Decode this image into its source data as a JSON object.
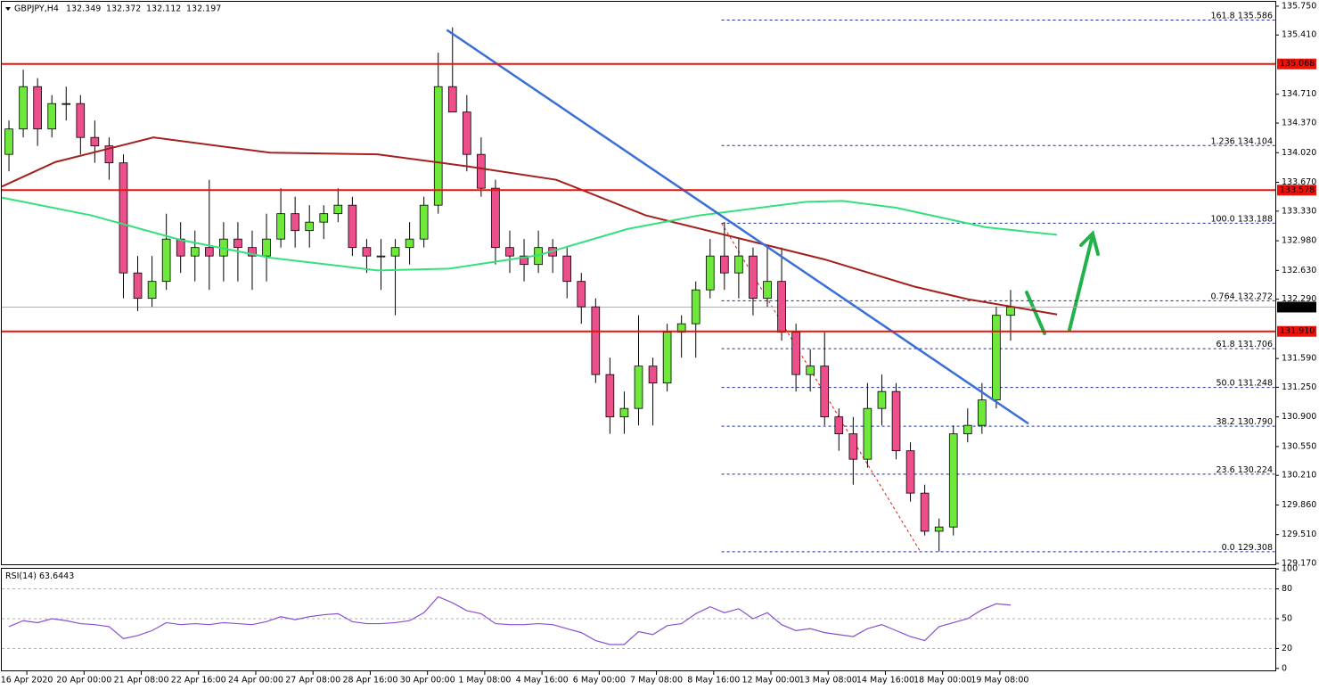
{
  "chart_data": [
    {
      "type": "candlestick",
      "symbol": "GBPJPY,H4",
      "header_ohlc": [
        132.349,
        132.372,
        132.112,
        132.197
      ],
      "xlim": [
        0,
        89
      ],
      "xticks": [
        {
          "value": 1.75,
          "label": "16 Apr 2020"
        },
        {
          "value": 5.75,
          "label": "20 Apr 00:00"
        },
        {
          "value": 9.75,
          "label": "21 Apr 08:00"
        },
        {
          "value": 13.75,
          "label": "22 Apr 16:00"
        },
        {
          "value": 17.75,
          "label": "24 Apr 00:00"
        },
        {
          "value": 21.75,
          "label": "27 Apr 08:00"
        },
        {
          "value": 25.75,
          "label": "28 Apr 16:00"
        },
        {
          "value": 29.75,
          "label": "30 Apr 00:00"
        },
        {
          "value": 33.75,
          "label": "1 May 08:00"
        },
        {
          "value": 37.75,
          "label": "4 May 16:00"
        },
        {
          "value": 41.75,
          "label": "6 May 00:00"
        },
        {
          "value": 45.75,
          "label": "7 May 08:00"
        },
        {
          "value": 49.75,
          "label": "8 May 16:00"
        },
        {
          "value": 53.75,
          "label": "12 May 00:00"
        },
        {
          "value": 57.75,
          "label": "13 May 08:00"
        },
        {
          "value": 61.75,
          "label": "14 May 16:00"
        },
        {
          "value": 65.75,
          "label": "18 May 00:00"
        },
        {
          "value": 69.75,
          "label": "19 May 08:00"
        }
      ],
      "ylim": [
        129.149,
        135.802
      ],
      "yticks": [
        {
          "value": 135.75,
          "label": "135.750"
        },
        {
          "value": 135.41,
          "label": "135.410"
        },
        {
          "value": 134.71,
          "label": "134.710"
        },
        {
          "value": 134.37,
          "label": "134.370"
        },
        {
          "value": 134.02,
          "label": "134.020"
        },
        {
          "value": 133.67,
          "label": "133.670"
        },
        {
          "value": 133.33,
          "label": "133.330"
        },
        {
          "value": 132.98,
          "label": "132.980"
        },
        {
          "value": 132.63,
          "label": "132.630"
        },
        {
          "value": 132.29,
          "label": "132.290"
        },
        {
          "value": 131.59,
          "label": "131.590"
        },
        {
          "value": 131.25,
          "label": "131.250"
        },
        {
          "value": 130.9,
          "label": "130.900"
        },
        {
          "value": 130.55,
          "label": "130.550"
        },
        {
          "value": 130.21,
          "label": "130.210"
        },
        {
          "value": 129.86,
          "label": "129.860"
        },
        {
          "value": 129.51,
          "label": "129.510"
        },
        {
          "value": 129.17,
          "label": "129.170"
        }
      ],
      "up_color": "#6ee83a",
      "down_color": "#ec4f8c",
      "candles": [
        [
          134.0,
          134.4,
          133.8,
          134.3
        ],
        [
          134.3,
          135.0,
          134.2,
          134.8
        ],
        [
          134.8,
          134.9,
          134.1,
          134.3
        ],
        [
          134.3,
          134.7,
          134.2,
          134.6
        ],
        [
          134.6,
          134.8,
          134.4,
          134.6
        ],
        [
          134.6,
          134.7,
          134.0,
          134.2
        ],
        [
          134.2,
          134.4,
          133.9,
          134.1
        ],
        [
          134.1,
          134.2,
          133.7,
          133.9
        ],
        [
          133.9,
          134.0,
          132.3,
          132.6
        ],
        [
          132.6,
          132.8,
          132.15,
          132.3
        ],
        [
          132.3,
          132.8,
          132.2,
          132.5
        ],
        [
          132.5,
          133.3,
          132.4,
          133.0
        ],
        [
          133.0,
          133.2,
          132.6,
          132.8
        ],
        [
          132.8,
          133.1,
          132.5,
          132.9
        ],
        [
          132.9,
          133.7,
          132.4,
          132.8
        ],
        [
          132.8,
          133.2,
          132.5,
          133.0
        ],
        [
          133.0,
          133.2,
          132.5,
          132.9
        ],
        [
          132.9,
          133.1,
          132.4,
          132.8
        ],
        [
          132.8,
          133.3,
          132.5,
          133.0
        ],
        [
          133.0,
          133.6,
          132.9,
          133.3
        ],
        [
          133.3,
          133.5,
          132.9,
          133.1
        ],
        [
          133.1,
          133.4,
          132.9,
          133.2
        ],
        [
          133.2,
          133.4,
          133.0,
          133.3
        ],
        [
          133.3,
          133.6,
          133.2,
          133.4
        ],
        [
          133.4,
          133.5,
          132.8,
          132.9
        ],
        [
          132.9,
          133.0,
          132.6,
          132.8
        ],
        [
          132.8,
          133.0,
          132.4,
          132.8
        ],
        [
          132.8,
          133.0,
          132.1,
          132.9
        ],
        [
          132.9,
          133.2,
          132.7,
          133.0
        ],
        [
          133.0,
          133.5,
          132.9,
          133.4
        ],
        [
          133.4,
          135.2,
          133.3,
          134.8
        ],
        [
          134.8,
          135.5,
          134.5,
          134.5
        ],
        [
          134.5,
          134.7,
          133.8,
          134.0
        ],
        [
          134.0,
          134.2,
          133.5,
          133.6
        ],
        [
          133.6,
          133.7,
          132.7,
          132.9
        ],
        [
          132.9,
          133.1,
          132.6,
          132.8
        ],
        [
          132.8,
          133.0,
          132.5,
          132.7
        ],
        [
          132.7,
          133.1,
          132.6,
          132.9
        ],
        [
          132.9,
          133.0,
          132.6,
          132.8
        ],
        [
          132.8,
          132.9,
          132.3,
          132.5
        ],
        [
          132.5,
          132.6,
          132.0,
          132.2
        ],
        [
          132.2,
          132.3,
          131.3,
          131.4
        ],
        [
          131.4,
          131.6,
          130.7,
          130.9
        ],
        [
          130.9,
          131.2,
          130.7,
          131.0
        ],
        [
          131.0,
          132.1,
          130.8,
          131.5
        ],
        [
          131.5,
          131.6,
          130.8,
          131.3
        ],
        [
          131.3,
          132.0,
          131.2,
          131.9
        ],
        [
          131.9,
          132.1,
          131.6,
          132.0
        ],
        [
          132.0,
          132.5,
          131.6,
          132.4
        ],
        [
          132.4,
          133.0,
          132.3,
          132.8
        ],
        [
          132.8,
          133.2,
          132.4,
          132.6
        ],
        [
          132.6,
          133.0,
          132.3,
          132.8
        ],
        [
          132.8,
          132.9,
          132.1,
          132.3
        ],
        [
          132.3,
          132.9,
          132.2,
          132.5
        ],
        [
          132.5,
          132.9,
          131.8,
          131.9
        ],
        [
          131.9,
          132.0,
          131.2,
          131.4
        ],
        [
          131.4,
          131.7,
          131.2,
          131.5
        ],
        [
          131.5,
          131.9,
          130.8,
          130.9
        ],
        [
          130.9,
          131.0,
          130.5,
          130.7
        ],
        [
          130.7,
          130.9,
          130.1,
          130.4
        ],
        [
          130.4,
          131.3,
          130.3,
          131.0
        ],
        [
          131.0,
          131.4,
          130.8,
          131.2
        ],
        [
          131.2,
          131.3,
          130.4,
          130.5
        ],
        [
          130.5,
          130.6,
          129.9,
          130.0
        ],
        [
          130.0,
          130.1,
          129.5,
          129.55
        ],
        [
          129.55,
          129.7,
          129.31,
          129.6
        ],
        [
          129.6,
          130.8,
          129.5,
          130.7
        ],
        [
          130.7,
          131.0,
          130.6,
          130.8
        ],
        [
          130.8,
          131.3,
          130.7,
          131.1
        ],
        [
          131.1,
          132.2,
          131.0,
          132.1
        ],
        [
          132.1,
          132.4,
          131.8,
          132.197
        ]
      ],
      "moving_averages": [
        {
          "color": "#a3201c",
          "x": [
            0,
            3.75,
            10.6,
            18.75,
            26.25,
            32.5,
            38.75,
            45,
            51.25,
            57.5,
            63.75,
            67.5,
            73.75
          ],
          "values": [
            133.62,
            133.91,
            134.2,
            134.02,
            134.0,
            133.86,
            133.7,
            133.28,
            133.02,
            132.76,
            132.44,
            132.29,
            132.11
          ]
        },
        {
          "color": "#33e07c",
          "x": [
            0,
            6.25,
            12.5,
            18.75,
            26.25,
            31.25,
            37.5,
            43.75,
            48.75,
            56.25,
            58.75,
            62.5,
            68.75,
            73.75
          ],
          "values": [
            133.49,
            133.28,
            132.99,
            132.78,
            132.63,
            132.65,
            132.81,
            133.12,
            133.28,
            133.44,
            133.45,
            133.37,
            133.14,
            133.05
          ]
        }
      ],
      "levels": [
        {
          "price": 135.068,
          "color": "#e8140c"
        },
        {
          "price": 133.578,
          "color": "#e8140c"
        },
        {
          "price": {
            "value": 131.91,
            "label": "131.910"
          },
          "color": "#e8140c"
        }
      ],
      "current_price": 132.197,
      "fibonacci": {
        "color": "#1a2a9a",
        "x_start": 50.3,
        "levels": [
          {
            "level": 161.8,
            "price": 135.586
          },
          {
            "level": 1.236,
            "price": 134.104
          },
          {
            "level": {
              "value": 100,
              "label": "100.0"
            },
            "price": 133.188
          },
          {
            "level": 0.764,
            "price": 132.272
          },
          {
            "level": 61.8,
            "price": 131.706
          },
          {
            "level": {
              "value": 50,
              "label": "50.0"
            },
            "price": 131.248
          },
          {
            "level": 38.2,
            "price": {
              "value": 130.79,
              "label": "130.790"
            }
          },
          {
            "level": 23.6,
            "price": 130.224
          },
          {
            "level": {
              "value": 0,
              "label": "0.0"
            },
            "price": 129.308
          }
        ]
      },
      "trendline": {
        "color": "#3a6fd8",
        "x": [
          31.1,
          71.75
        ],
        "values": [
          135.47,
          130.82
        ]
      },
      "fib_line": {
        "color": "#e8140c",
        "x": [
          50.3,
          64.2
        ],
        "values": [
          133.188,
          129.308
        ]
      }
    },
    {
      "type": "line",
      "label": "RSI(14)",
      "last": 63.6443,
      "xlim": [
        0,
        89
      ],
      "ylim": [
        -2,
        101.1
      ],
      "yticks": [
        0,
        20,
        50,
        80,
        100
      ],
      "levels": [
        20,
        50,
        80
      ],
      "color": "#8a4fd0",
      "values": [
        42,
        48,
        46,
        50,
        48,
        45,
        44,
        42,
        30,
        33,
        38,
        46,
        44,
        45,
        44,
        46,
        45,
        44,
        47,
        52,
        49,
        52,
        54,
        55,
        47,
        45,
        45,
        46,
        48,
        56,
        72,
        66,
        58,
        55,
        45,
        44,
        44,
        45,
        44,
        40,
        36,
        28,
        24,
        24,
        37,
        34,
        43,
        45,
        55,
        62,
        56,
        60,
        50,
        56,
        44,
        38,
        40,
        36,
        34,
        32,
        40,
        44,
        38,
        32,
        28,
        42,
        46,
        50,
        59,
        65,
        63.6443
      ]
    }
  ]
}
